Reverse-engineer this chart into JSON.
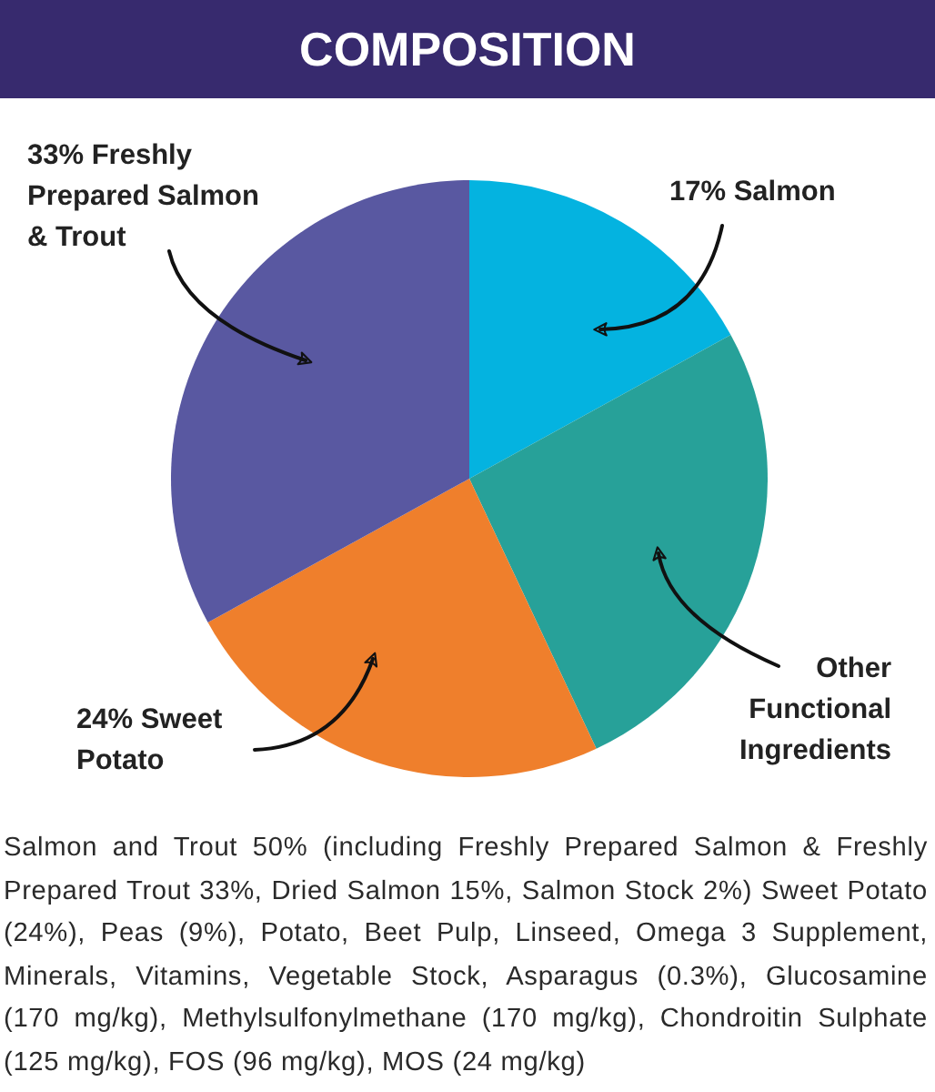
{
  "chart_data": {
    "type": "pie",
    "title": "COMPOSITION",
    "categories": [
      "Salmon",
      "Other Functional Ingredients",
      "Sweet Potato",
      "Freshly Prepared Salmon & Trout"
    ],
    "values": [
      17,
      26,
      24,
      33
    ],
    "value_labels": [
      "17%",
      null,
      "24%",
      "33%"
    ],
    "colors": [
      "#04b3e0",
      "#27a199",
      "#ef7f2c",
      "#5958a1"
    ],
    "annotations": [
      "Salmon and Trout 50% (including Freshly Prepared Salmon & Freshly Prepared Trout 33%, Dried Salmon 15%, Salmon Stock 2%) Sweet Potato (24%), Peas (9%), Potato, Beet Pulp, Linseed, Omega 3 Supplement, Minerals, Vitamins, Vegetable Stock, Asparagus (0.3%), Glucosamine (170 mg/kg), Methylsulfonylmethane (170 mg/kg), Chondroitin Sulphate (125 mg/kg), FOS (96 mg/kg), MOS (24 mg/kg)"
    ],
    "data_labels": false
  }
}
